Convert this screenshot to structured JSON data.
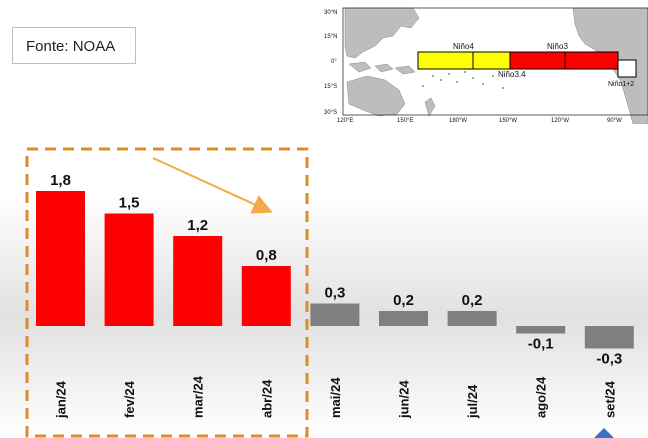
{
  "source_label": "Fonte: NOAA",
  "chart_data": {
    "type": "bar",
    "categories": [
      "jan/24",
      "fev/24",
      "mar/24",
      "abr/24",
      "mai/24",
      "jun/24",
      "jul/24",
      "ago/24",
      "set/24"
    ],
    "values": [
      1.8,
      1.5,
      1.2,
      0.8,
      0.3,
      0.2,
      0.2,
      -0.1,
      -0.3
    ],
    "data_labels": [
      "1,8",
      "1,5",
      "1,2",
      "0,8",
      "0,3",
      "0,2",
      "0,2",
      "-0,1",
      "-0,3"
    ],
    "highlighted_categories": [
      "jan/24",
      "fev/24",
      "mar/24",
      "abr/24"
    ],
    "colors": {
      "highlighted": "#ff0000",
      "other": "#7f7f7f",
      "box": "#e08a2c",
      "arrow": "#f4a848",
      "marker": "#3a6fc4"
    },
    "title": "",
    "xlabel": "",
    "ylabel": "",
    "ylim": [
      -0.3,
      1.8
    ]
  },
  "map_inset": {
    "lat_labels": [
      "30°N",
      "15°N",
      "0°",
      "15°S",
      "30°S"
    ],
    "lon_labels": [
      "120°E",
      "150°E",
      "180°W",
      "150°W",
      "120°W",
      "90°W"
    ],
    "regions": [
      {
        "label": "Niño4",
        "color": "#ffff00"
      },
      {
        "label": "Niño3",
        "color": "#ff0000"
      },
      {
        "label": "Niño3.4",
        "color": "#ffffff"
      },
      {
        "label": "Niño1+2",
        "color": "#ffffff"
      }
    ]
  }
}
